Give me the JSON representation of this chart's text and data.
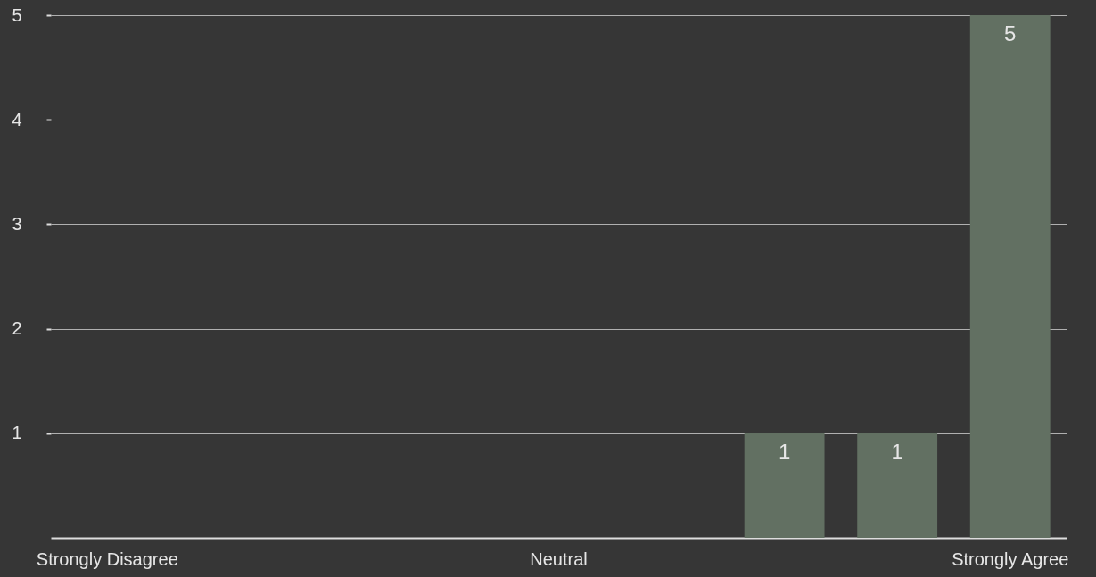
{
  "chart_data": {
    "type": "bar",
    "categories": [
      "Strongly Disagree",
      null,
      null,
      null,
      "Neutral",
      null,
      null,
      null,
      "Strongly Agree"
    ],
    "values": [
      0,
      0,
      0,
      0,
      0,
      0,
      1,
      1,
      5
    ],
    "value_labels": [
      null,
      null,
      null,
      null,
      null,
      null,
      "1",
      "1",
      "5"
    ],
    "color": "#627062",
    "ylim": [
      0,
      5
    ],
    "yticks": [
      1,
      2,
      3,
      4,
      5
    ],
    "grid": "y"
  }
}
